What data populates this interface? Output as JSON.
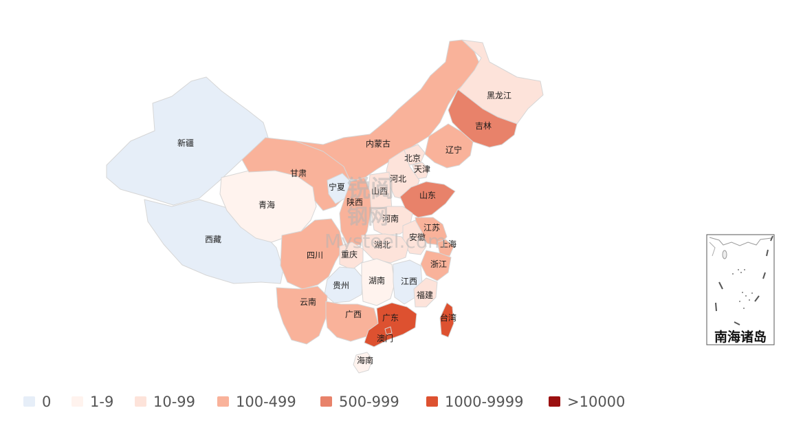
{
  "legend": [
    {
      "label": "0",
      "color": "#e6eef8"
    },
    {
      "label": "1-9",
      "color": "#fff3ee"
    },
    {
      "label": "10-99",
      "color": "#fde3da"
    },
    {
      "label": "100-499",
      "color": "#f9b29a"
    },
    {
      "label": "500-999",
      "color": "#e8826a"
    },
    {
      "label": "1000-9999",
      "color": "#dd5130"
    },
    {
      "label": ">10000",
      "color": "#9b1010"
    }
  ],
  "inset": {
    "title": "南海诸岛"
  },
  "watermark": {
    "line1": "锐阅",
    "line2": "钢网",
    "line3": "Mysteel.com"
  },
  "provinces": [
    {
      "name": "新疆",
      "level": 0
    },
    {
      "name": "西藏",
      "level": 0
    },
    {
      "name": "青海",
      "level": 1
    },
    {
      "name": "甘肃",
      "level": 3
    },
    {
      "name": "内蒙古",
      "level": 3
    },
    {
      "name": "黑龙江",
      "level": 2
    },
    {
      "name": "吉林",
      "level": 4
    },
    {
      "name": "辽宁",
      "level": 3
    },
    {
      "name": "北京",
      "level": 2
    },
    {
      "name": "天津",
      "level": 2
    },
    {
      "name": "河北",
      "level": 2
    },
    {
      "name": "山西",
      "level": 2
    },
    {
      "name": "宁夏",
      "level": 0
    },
    {
      "name": "陕西",
      "level": 3
    },
    {
      "name": "山东",
      "level": 4
    },
    {
      "name": "河南",
      "level": 2
    },
    {
      "name": "江苏",
      "level": 3
    },
    {
      "name": "安徽",
      "level": 2
    },
    {
      "name": "上海",
      "level": 3
    },
    {
      "name": "四川",
      "level": 3
    },
    {
      "name": "重庆",
      "level": 2
    },
    {
      "name": "湖北",
      "level": 2
    },
    {
      "name": "浙江",
      "level": 3
    },
    {
      "name": "贵州",
      "level": 0
    },
    {
      "name": "湖南",
      "level": 1
    },
    {
      "name": "江西",
      "level": 0
    },
    {
      "name": "福建",
      "level": 2
    },
    {
      "name": "云南",
      "level": 3
    },
    {
      "name": "广西",
      "level": 3
    },
    {
      "name": "广东",
      "level": 5
    },
    {
      "name": "台湾",
      "level": 5
    },
    {
      "name": "澳门",
      "level": 5
    },
    {
      "name": "海南",
      "level": 1
    }
  ]
}
